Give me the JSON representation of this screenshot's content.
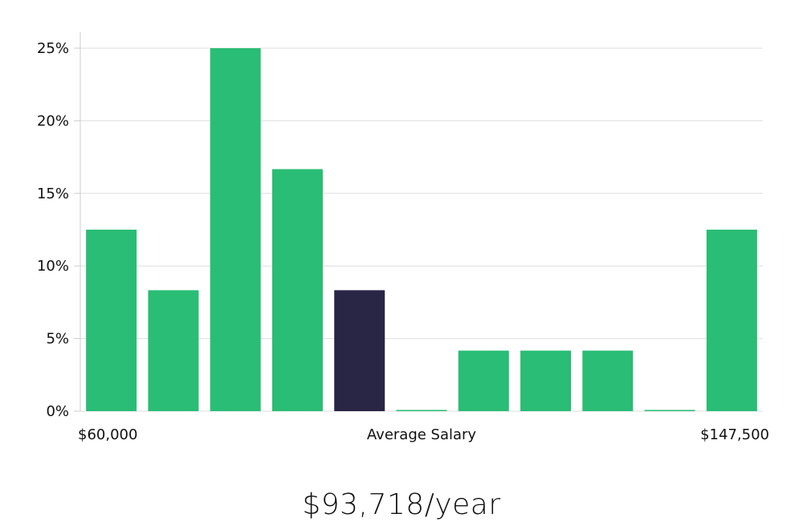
{
  "chart_data": {
    "type": "bar",
    "title": "",
    "xlabel": "Average Salary",
    "ylabel": "",
    "x_min_label": "$60,000",
    "x_max_label": "$147,500",
    "y_ticks": [
      0,
      5,
      10,
      15,
      20,
      25
    ],
    "y_tick_labels": [
      "0%",
      "5%",
      "10%",
      "15%",
      "20%",
      "25%"
    ],
    "ylim": [
      0,
      26
    ],
    "grid": true,
    "values": [
      12.5,
      8.33,
      25,
      16.67,
      8.33,
      0,
      4.17,
      4.17,
      4.17,
      0,
      12.5
    ],
    "highlight_index": 4,
    "colors": {
      "bar": "#2abd75",
      "highlight": "#292545",
      "grid": "#dddddd",
      "axis": "#cccccc"
    }
  },
  "summary": {
    "salary_text": "$93,718/year"
  }
}
